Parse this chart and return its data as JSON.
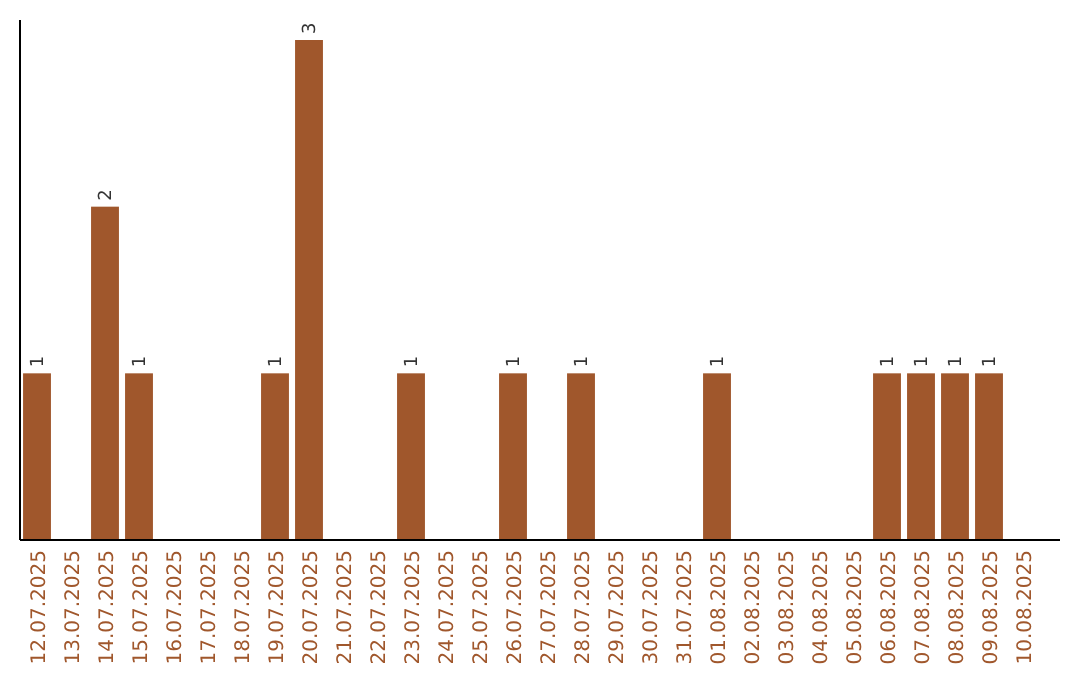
{
  "chart_data": {
    "type": "bar",
    "categories": [
      "12.07.2025",
      "13.07.2025",
      "14.07.2025",
      "15.07.2025",
      "16.07.2025",
      "17.07.2025",
      "18.07.2025",
      "19.07.2025",
      "20.07.2025",
      "21.07.2025",
      "22.07.2025",
      "23.07.2025",
      "24.07.2025",
      "25.07.2025",
      "26.07.2025",
      "27.07.2025",
      "28.07.2025",
      "29.07.2025",
      "30.07.2025",
      "31.07.2025",
      "01.08.2025",
      "02.08.2025",
      "03.08.2025",
      "04.08.2025",
      "05.08.2025",
      "06.08.2025",
      "07.08.2025",
      "08.08.2025",
      "09.08.2025",
      "10.08.2025"
    ],
    "values": [
      1,
      0,
      2,
      1,
      0,
      0,
      0,
      1,
      3,
      0,
      0,
      1,
      0,
      0,
      1,
      0,
      1,
      0,
      0,
      0,
      1,
      0,
      0,
      0,
      0,
      1,
      1,
      1,
      1,
      0
    ],
    "value_labels": [
      "1",
      null,
      "2",
      "1",
      null,
      null,
      null,
      "1",
      "3",
      null,
      null,
      "1",
      null,
      null,
      "1",
      null,
      "1",
      null,
      null,
      null,
      "1",
      null,
      null,
      null,
      null,
      "1",
      "1",
      "1",
      "1",
      null
    ],
    "color": "#a0572c",
    "ylim": [
      0,
      3
    ],
    "tick_labels": "x"
  }
}
